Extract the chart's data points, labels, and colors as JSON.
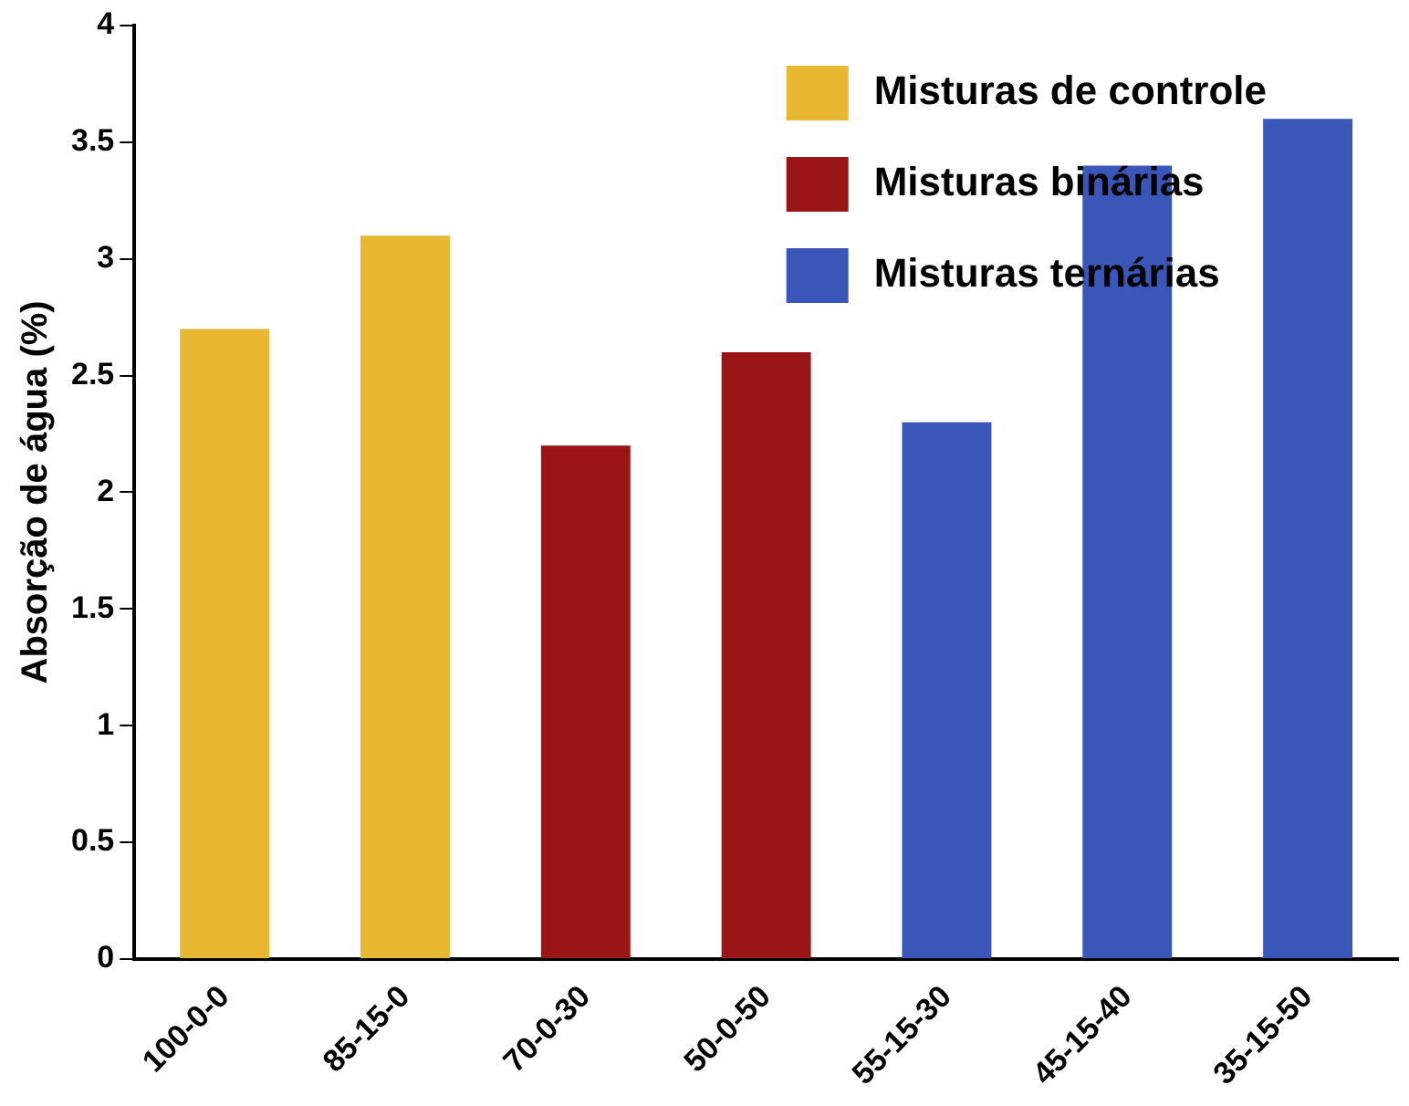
{
  "chart_data": {
    "type": "bar",
    "ylabel": "Absorção de água (%)",
    "categories": [
      "100-0-0",
      "85-15-0",
      "70-0-30",
      "50-0-50",
      "55-15-30",
      "45-15-40",
      "35-15-50"
    ],
    "series": [
      {
        "name": "Misturas de controle",
        "color": "#e8b832",
        "values": [
          2.7,
          3.1,
          null,
          null,
          null,
          null,
          null
        ]
      },
      {
        "name": "Misturas binárias",
        "color": "#9a1616",
        "values": [
          null,
          null,
          2.2,
          2.6,
          null,
          null,
          null
        ]
      },
      {
        "name": "Misturas ternárias",
        "color": "#3b56b9",
        "values": [
          null,
          null,
          null,
          null,
          2.3,
          3.4,
          3.6
        ]
      }
    ],
    "ylim": [
      0,
      4
    ],
    "yticks": [
      0,
      0.5,
      1,
      1.5,
      2,
      2.5,
      3,
      3.5,
      4
    ],
    "grid": false,
    "legend": "top right"
  }
}
